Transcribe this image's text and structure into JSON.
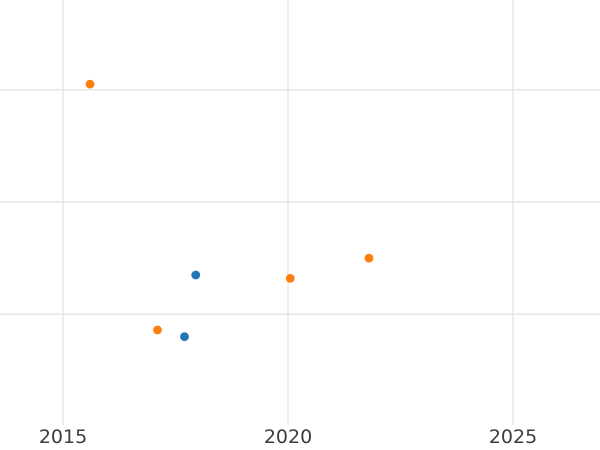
{
  "styles": {
    "background": "#ffffff",
    "grid_color": "#e6e6e6",
    "tick_label_color": "#3d3d3d"
  },
  "chart_data": {
    "type": "scatter",
    "title": "",
    "xlabel": "",
    "ylabel": "",
    "x_ticks": [
      2015,
      2020,
      2025
    ],
    "x_tick_labels": [
      "2015",
      "2020",
      "2025"
    ],
    "xlim": [
      2013.6,
      2026.9
    ],
    "ylim": [
      0,
      3.8
    ],
    "y_gridlines": [
      1,
      2,
      3
    ],
    "y_units_note": "no y-axis labels visible in the image; y values are expressed in gridline units measured up from the bottom plot edge (one gridline spacing = 1 unit)",
    "grid": true,
    "legend_position": "none",
    "marker": "circle",
    "series": [
      {
        "name": "blue",
        "color": "#1f77b4",
        "points": [
          {
            "x": 2017.7,
            "y": 0.8
          },
          {
            "x": 2017.95,
            "y": 1.35
          }
        ]
      },
      {
        "name": "orange",
        "color": "#ff7f0e",
        "points": [
          {
            "x": 2015.6,
            "y": 3.05
          },
          {
            "x": 2017.1,
            "y": 0.86
          },
          {
            "x": 2020.05,
            "y": 1.32
          },
          {
            "x": 2021.8,
            "y": 1.5
          }
        ]
      }
    ]
  }
}
